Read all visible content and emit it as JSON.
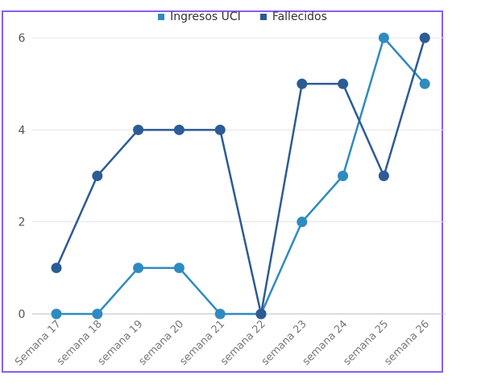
{
  "chart_data": {
    "type": "line",
    "categories": [
      "Semana 17",
      "semana 18",
      "semana 19",
      "semana 20",
      "semana 21",
      "semana 22",
      "semana 23",
      "semana 24",
      "semana 25",
      "semana 26"
    ],
    "series": [
      {
        "name": "Ingresos UCI",
        "color": "#2e8bc0",
        "values": [
          0,
          0,
          1,
          1,
          0,
          0,
          2,
          3,
          6,
          5
        ]
      },
      {
        "name": "Fallecidos",
        "color": "#2c5b95",
        "values": [
          1,
          3,
          4,
          4,
          4,
          0,
          5,
          5,
          3,
          6
        ]
      }
    ],
    "yticks": [
      "0",
      "2",
      "4",
      "6"
    ],
    "ylim": [
      0,
      6
    ],
    "grid": true,
    "legend_position": "top-center",
    "title": "",
    "xlabel": "",
    "ylabel": ""
  }
}
